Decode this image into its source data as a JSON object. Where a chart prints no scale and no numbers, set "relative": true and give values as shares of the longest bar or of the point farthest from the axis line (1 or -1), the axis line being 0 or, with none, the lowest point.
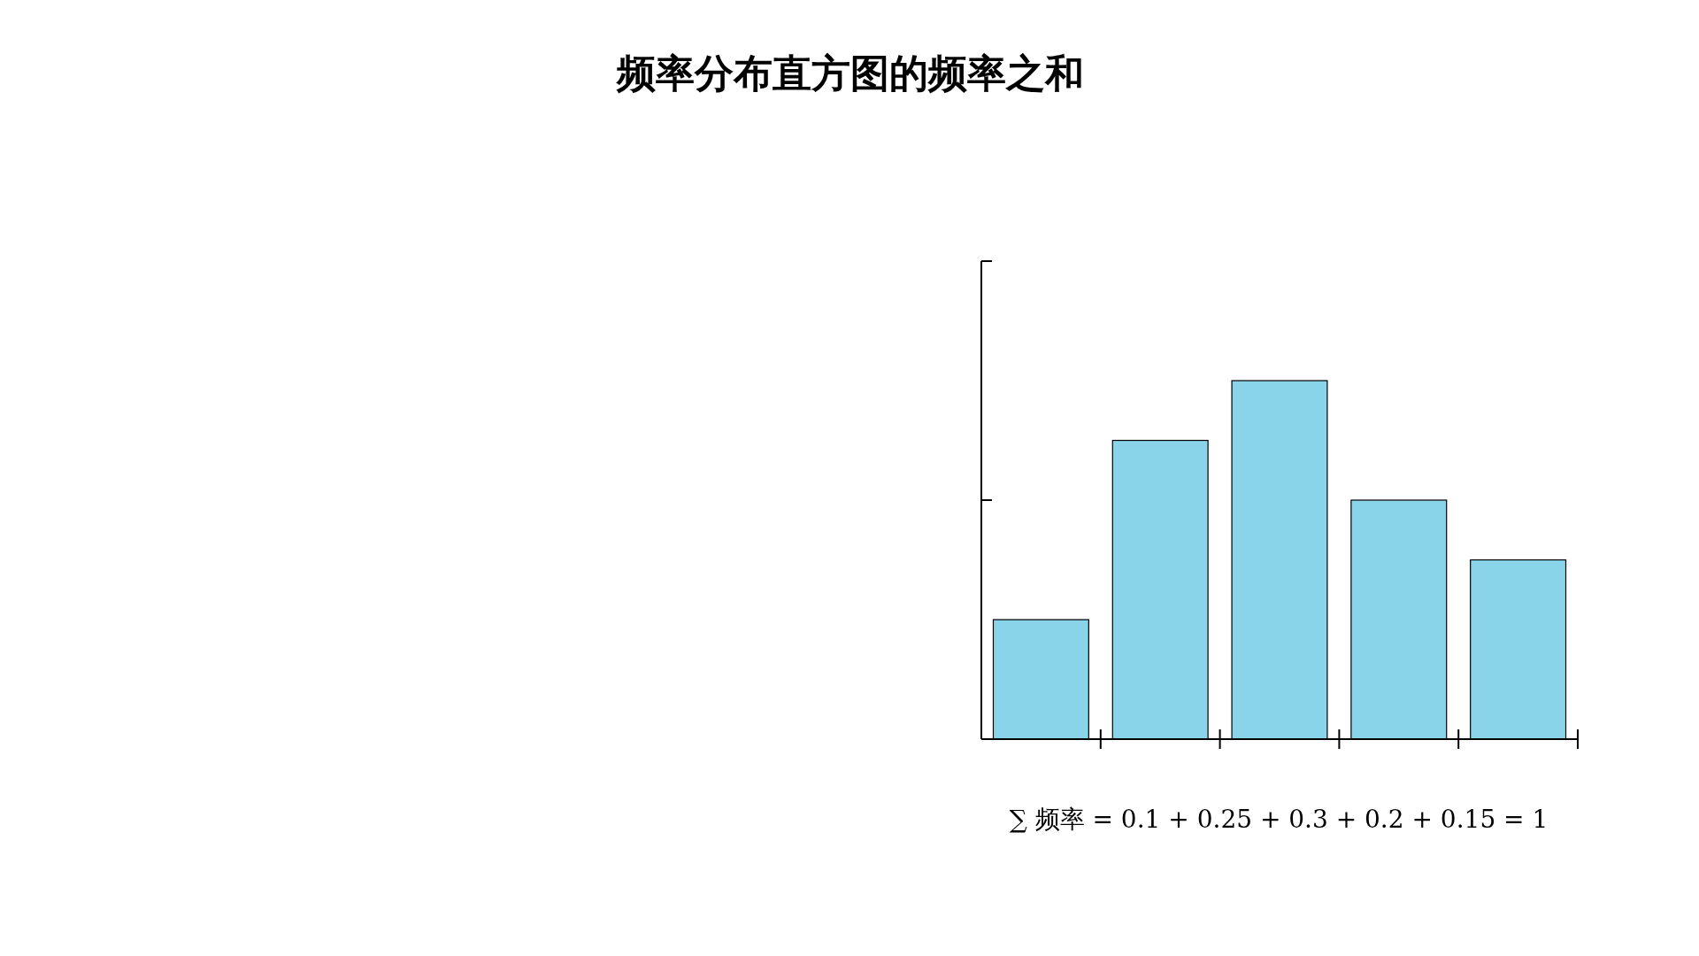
{
  "chart_data": {
    "type": "bar",
    "title": "频率分布直方图的频率之和",
    "categories": [
      null,
      null,
      null,
      null,
      null
    ],
    "values": [
      0.3333,
      0.8333,
      1,
      0.6667,
      0.5
    ],
    "color": "#89d4e8",
    "relative": true,
    "annotations": [
      "∑ 频率 = 0.1 + 0.25 + 0.3 + 0.2 + 0.15 = 1"
    ]
  }
}
